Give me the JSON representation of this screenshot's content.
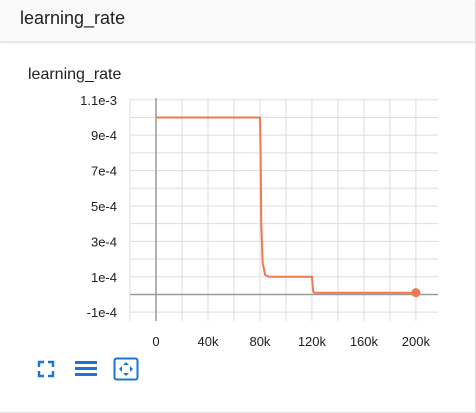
{
  "header": {
    "title": "learning_rate"
  },
  "card": {
    "title": "learning_rate"
  },
  "colors": {
    "accent": "#1976d2",
    "series": "#f0784f",
    "grid": "#dddddd",
    "axis": "#999999"
  },
  "toolbar": {
    "buttons": [
      {
        "name": "toggle-expand-button",
        "icon": "expand-icon"
      },
      {
        "name": "toggle-log-scale-button",
        "icon": "lines-icon"
      },
      {
        "name": "fit-domain-button",
        "icon": "fit-icon"
      }
    ]
  },
  "chart_data": {
    "type": "line",
    "title": "learning_rate",
    "xlabel": "",
    "ylabel": "",
    "xlim": [
      -20000,
      217000
    ],
    "ylim": [
      -0.00015,
      0.00111
    ],
    "x_ticks": [
      0,
      40000,
      80000,
      120000,
      160000,
      200000
    ],
    "x_tick_labels": [
      "0",
      "40k",
      "80k",
      "120k",
      "160k",
      "200k"
    ],
    "y_ticks": [
      0.0011,
      0.0009,
      0.0007,
      0.0005,
      0.0003,
      0.0001,
      -0.0001
    ],
    "y_tick_labels": [
      "1.1e-3",
      "9e-4",
      "7e-4",
      "5e-4",
      "3e-4",
      "1e-4",
      "-1e-4"
    ],
    "grid": true,
    "series": [
      {
        "x": [
          0,
          80000,
          80500,
          81000,
          82000,
          84000,
          87000,
          90000,
          120000,
          120500,
          121000,
          122000,
          125000,
          200000
        ],
        "y": [
          0.001,
          0.001,
          0.0008,
          0.0004,
          0.00018,
          0.00011,
          0.0001,
          0.0001,
          0.0001,
          5e-05,
          1.5e-05,
          1e-05,
          1e-05,
          1e-05
        ]
      }
    ],
    "last_point": {
      "x": 200000,
      "y": 1e-05
    }
  }
}
